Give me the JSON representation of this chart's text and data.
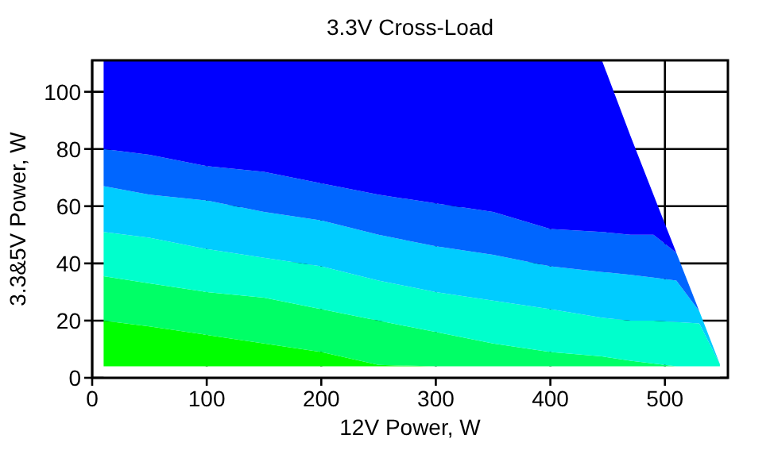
{
  "chart_data": {
    "type": "area",
    "stacked": true,
    "title": "3.3V Cross-Load",
    "xlabel": "12V Power, W",
    "ylabel": "3.3&5V Power, W",
    "x": [
      10,
      50,
      100,
      150,
      200,
      250,
      300,
      350,
      400,
      445,
      470,
      490,
      510,
      530,
      548
    ],
    "series": [
      {
        "color": "#ffffff",
        "values": [
          4,
          4,
          4,
          4,
          4,
          4,
          4,
          4,
          4,
          4,
          4,
          4,
          4,
          4,
          4
        ]
      },
      {
        "color": "#00ff00",
        "values": [
          16,
          14,
          11,
          8,
          5,
          0.5,
          0,
          0,
          0,
          0,
          0,
          0,
          0,
          0,
          0
        ]
      },
      {
        "color": "#00ff66",
        "values": [
          15.5,
          15,
          15,
          16,
          15,
          15.5,
          12,
          8,
          5,
          3.5,
          2,
          1,
          0,
          0,
          0
        ]
      },
      {
        "color": "#00ffcc",
        "values": [
          15.5,
          16,
          15,
          14,
          15,
          14,
          14,
          15,
          15,
          13.5,
          14,
          15,
          15.5,
          15,
          0.8
        ]
      },
      {
        "color": "#00ccff",
        "values": [
          16,
          15,
          17,
          16,
          16,
          16,
          16,
          16,
          15,
          16,
          16,
          15,
          14.5,
          4.3,
          0
        ]
      },
      {
        "color": "#0066ff",
        "values": [
          13,
          14,
          12,
          14,
          13,
          14,
          15,
          15,
          13,
          14,
          14,
          15,
          9.7,
          0,
          0
        ]
      },
      {
        "color": "#0000ff",
        "values": [
          31,
          33,
          37,
          39,
          43,
          47,
          50,
          53,
          59,
          60,
          34.5,
          14,
          0,
          0,
          0
        ]
      }
    ],
    "xlim": [
      0,
      555
    ],
    "ylim": [
      0,
      111
    ],
    "xticks": [
      0,
      100,
      200,
      300,
      400,
      500
    ],
    "yticks": [
      0,
      20,
      40,
      60,
      80,
      100
    ],
    "grid": true
  }
}
